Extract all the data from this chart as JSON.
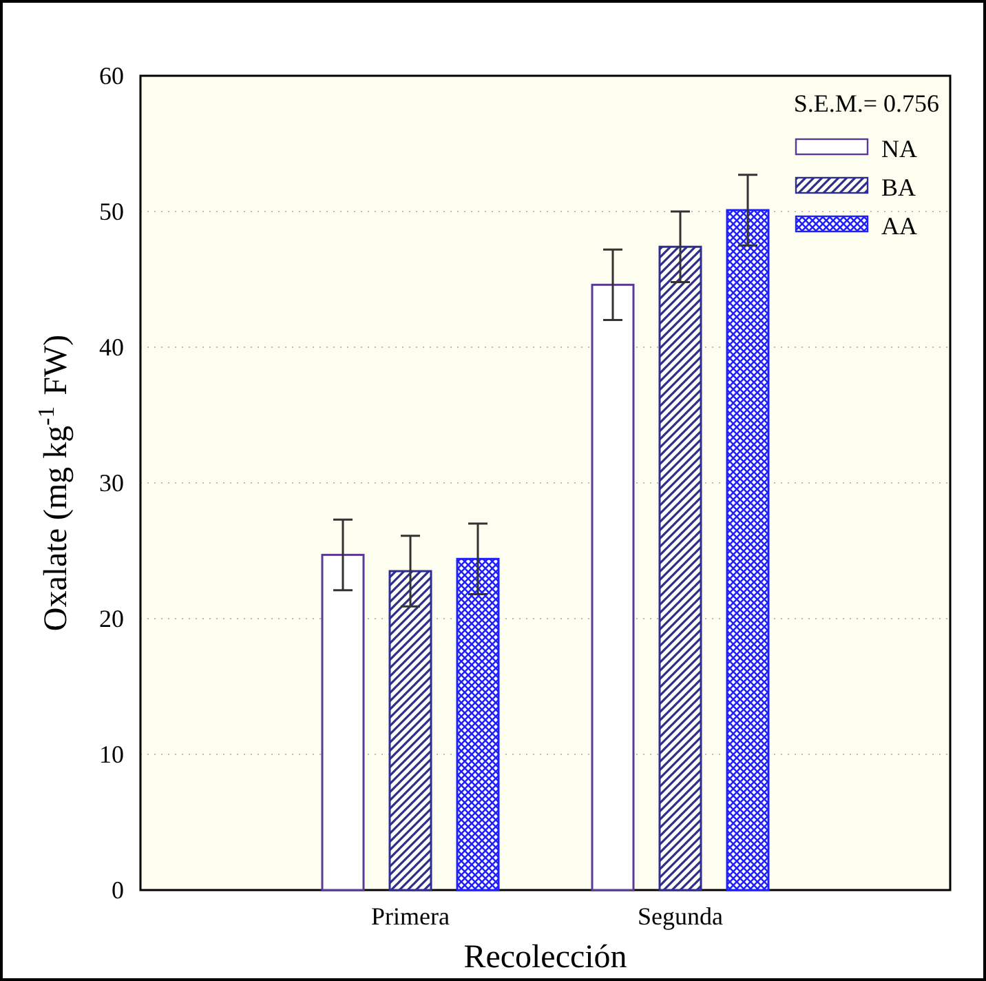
{
  "chart_data": {
    "type": "bar",
    "xlabel": "Recolección",
    "ylabel": "Oxalate (mg kg$^{-1}$ FW)",
    "categories": [
      "Primera",
      "Segunda"
    ],
    "series": [
      {
        "name": "NA",
        "color": "#5b3a96",
        "values": [
          24.7,
          44.6
        ],
        "errors": [
          2.6,
          2.6
        ]
      },
      {
        "name": "BA",
        "color": "#2e2e8f",
        "values": [
          23.5,
          47.4
        ],
        "errors": [
          2.6,
          2.6
        ]
      },
      {
        "name": "AA",
        "color": "#1f1fff",
        "values": [
          24.4,
          50.1
        ],
        "errors": [
          2.6,
          2.6
        ]
      }
    ],
    "ylim": [
      0,
      60
    ],
    "yticks": [
      0,
      10,
      20,
      30,
      40,
      50,
      60
    ],
    "grid": "y",
    "legend": "top right",
    "annotations": [
      "S.E.M.= 0.756"
    ]
  }
}
